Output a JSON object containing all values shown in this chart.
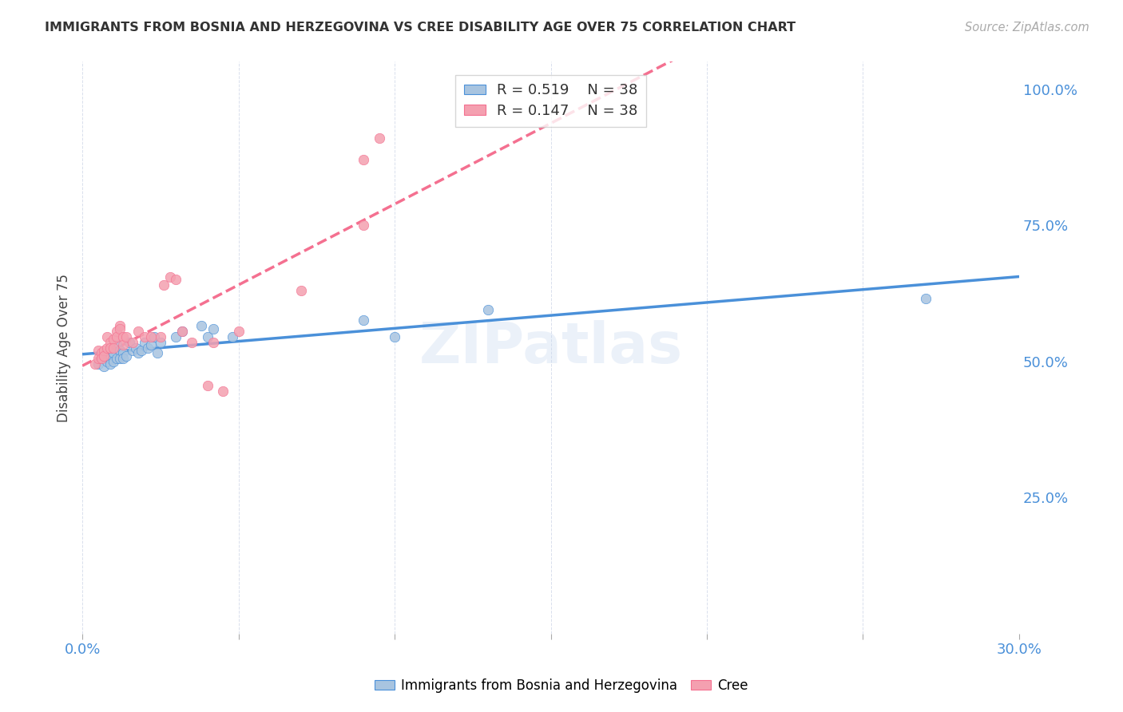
{
  "title": "IMMIGRANTS FROM BOSNIA AND HERZEGOVINA VS CREE DISABILITY AGE OVER 75 CORRELATION CHART",
  "source": "Source: ZipAtlas.com",
  "ylabel": "Disability Age Over 75",
  "xmin": 0.0,
  "xmax": 0.3,
  "ymin": 0.0,
  "ymax": 1.05,
  "yticks": [
    0.0,
    0.25,
    0.5,
    0.75,
    1.0
  ],
  "ytick_labels": [
    "",
    "25.0%",
    "50.0%",
    "75.0%",
    "100.0%"
  ],
  "watermark": "ZIPatlas",
  "legend_r1": "R = 0.519",
  "legend_n1": "N = 38",
  "legend_r2": "R = 0.147",
  "legend_n2": "N = 38",
  "blue_color": "#a8c4e0",
  "pink_color": "#f4a0b0",
  "blue_line_color": "#4a90d9",
  "pink_line_color": "#f47090",
  "blue_scatter": [
    [
      0.005,
      0.495
    ],
    [
      0.006,
      0.505
    ],
    [
      0.007,
      0.51
    ],
    [
      0.007,
      0.49
    ],
    [
      0.008,
      0.5
    ],
    [
      0.008,
      0.515
    ],
    [
      0.009,
      0.505
    ],
    [
      0.009,
      0.495
    ],
    [
      0.01,
      0.515
    ],
    [
      0.01,
      0.5
    ],
    [
      0.011,
      0.53
    ],
    [
      0.011,
      0.505
    ],
    [
      0.012,
      0.52
    ],
    [
      0.012,
      0.505
    ],
    [
      0.013,
      0.515
    ],
    [
      0.013,
      0.505
    ],
    [
      0.014,
      0.51
    ],
    [
      0.015,
      0.535
    ],
    [
      0.016,
      0.52
    ],
    [
      0.017,
      0.525
    ],
    [
      0.018,
      0.515
    ],
    [
      0.019,
      0.52
    ],
    [
      0.02,
      0.535
    ],
    [
      0.021,
      0.525
    ],
    [
      0.022,
      0.53
    ],
    [
      0.023,
      0.545
    ],
    [
      0.024,
      0.515
    ],
    [
      0.025,
      0.535
    ],
    [
      0.03,
      0.545
    ],
    [
      0.032,
      0.555
    ],
    [
      0.038,
      0.565
    ],
    [
      0.04,
      0.545
    ],
    [
      0.042,
      0.56
    ],
    [
      0.048,
      0.545
    ],
    [
      0.09,
      0.575
    ],
    [
      0.1,
      0.545
    ],
    [
      0.13,
      0.595
    ],
    [
      0.27,
      0.615
    ]
  ],
  "pink_scatter": [
    [
      0.004,
      0.495
    ],
    [
      0.005,
      0.52
    ],
    [
      0.005,
      0.505
    ],
    [
      0.006,
      0.515
    ],
    [
      0.006,
      0.505
    ],
    [
      0.007,
      0.52
    ],
    [
      0.007,
      0.51
    ],
    [
      0.008,
      0.545
    ],
    [
      0.008,
      0.525
    ],
    [
      0.009,
      0.535
    ],
    [
      0.009,
      0.525
    ],
    [
      0.01,
      0.54
    ],
    [
      0.01,
      0.525
    ],
    [
      0.011,
      0.555
    ],
    [
      0.011,
      0.545
    ],
    [
      0.012,
      0.565
    ],
    [
      0.012,
      0.56
    ],
    [
      0.013,
      0.545
    ],
    [
      0.013,
      0.53
    ],
    [
      0.014,
      0.545
    ],
    [
      0.016,
      0.535
    ],
    [
      0.018,
      0.555
    ],
    [
      0.02,
      0.545
    ],
    [
      0.022,
      0.545
    ],
    [
      0.025,
      0.545
    ],
    [
      0.026,
      0.64
    ],
    [
      0.028,
      0.655
    ],
    [
      0.03,
      0.65
    ],
    [
      0.032,
      0.555
    ],
    [
      0.035,
      0.535
    ],
    [
      0.04,
      0.455
    ],
    [
      0.042,
      0.535
    ],
    [
      0.045,
      0.445
    ],
    [
      0.05,
      0.555
    ],
    [
      0.07,
      0.63
    ],
    [
      0.09,
      0.87
    ],
    [
      0.09,
      0.75
    ],
    [
      0.095,
      0.91
    ]
  ]
}
